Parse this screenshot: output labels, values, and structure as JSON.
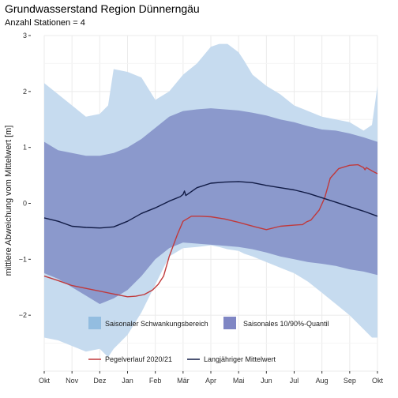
{
  "chart_data": {
    "type": "area",
    "title": "Grundwasserstand Region Dünnerngäu",
    "subtitle": "Anzahl Stationen = 4",
    "xlabel": "",
    "ylabel": "mittlere Abweichung vom Mittelwert [m]",
    "xlim": [
      0,
      12
    ],
    "ylim": [
      -3,
      3
    ],
    "x_tick_labels": [
      "Okt",
      "Nov",
      "Dez",
      "Jan",
      "Feb",
      "Mär",
      "Apr",
      "Mai",
      "Jun",
      "Jul",
      "Aug",
      "Sep",
      "Okt"
    ],
    "y_ticks": [
      3,
      2,
      1,
      0,
      -1,
      -2
    ],
    "y_tick_labels": [
      "3",
      "2",
      "1",
      "0",
      "−1",
      "−2"
    ],
    "grid": true,
    "legend_position": "bottom",
    "bands": [
      {
        "name": "Saisonaler Schwankungsbereich",
        "color": "#c6dbef",
        "x": [
          0,
          0.5,
          1,
          1.5,
          2,
          2.3,
          2.5,
          3,
          3.5,
          4,
          4.5,
          5,
          5.5,
          6,
          6.3,
          6.6,
          7,
          7.2,
          7.5,
          8,
          8.5,
          9,
          9.5,
          10,
          10.5,
          11,
          11.5,
          11.8,
          12
        ],
        "upper": [
          2.15,
          1.95,
          1.75,
          1.55,
          1.6,
          1.75,
          2.4,
          2.35,
          2.25,
          1.85,
          2.0,
          2.3,
          2.5,
          2.8,
          2.85,
          2.85,
          2.7,
          2.55,
          2.3,
          2.1,
          1.95,
          1.75,
          1.65,
          1.55,
          1.5,
          1.45,
          1.3,
          1.4,
          2.1
        ],
        "lower": [
          -2.4,
          -2.45,
          -2.55,
          -2.65,
          -2.6,
          -2.75,
          -2.6,
          -2.35,
          -1.95,
          -1.45,
          -0.95,
          -0.8,
          -0.78,
          -0.75,
          -0.78,
          -0.82,
          -0.85,
          -0.9,
          -0.95,
          -1.05,
          -1.15,
          -1.25,
          -1.4,
          -1.6,
          -1.8,
          -2.0,
          -2.25,
          -2.4,
          -2.4
        ]
      },
      {
        "name": "Saisonales 10/90%-Quantil",
        "color": "#8b99cc",
        "x": [
          0,
          0.5,
          1,
          1.5,
          2,
          2.5,
          3,
          3.5,
          4,
          4.5,
          5,
          5.5,
          6,
          6.5,
          7,
          7.5,
          8,
          8.5,
          9,
          9.5,
          10,
          10.5,
          11,
          11.5,
          12
        ],
        "upper": [
          1.1,
          0.95,
          0.9,
          0.85,
          0.85,
          0.9,
          1.0,
          1.15,
          1.35,
          1.55,
          1.65,
          1.68,
          1.7,
          1.68,
          1.66,
          1.62,
          1.57,
          1.5,
          1.45,
          1.38,
          1.32,
          1.3,
          1.25,
          1.18,
          1.1
        ],
        "lower": [
          -1.25,
          -1.35,
          -1.5,
          -1.65,
          -1.8,
          -1.7,
          -1.55,
          -1.3,
          -1.0,
          -0.8,
          -0.7,
          -0.72,
          -0.74,
          -0.76,
          -0.78,
          -0.82,
          -0.88,
          -0.95,
          -1.0,
          -1.05,
          -1.08,
          -1.12,
          -1.18,
          -1.22,
          -1.28
        ]
      }
    ],
    "series": [
      {
        "name": "Pegelverlauf  2020/21",
        "color": "#c0393b",
        "x": [
          0,
          0.5,
          1,
          1.5,
          2,
          2.5,
          3,
          3.3,
          3.6,
          3.9,
          4.1,
          4.3,
          4.5,
          4.8,
          5,
          5.3,
          5.6,
          6,
          6.5,
          7,
          7.3,
          7.6,
          8,
          8.5,
          9,
          9.3,
          9.45,
          9.6,
          9.9,
          10.1,
          10.3,
          10.6,
          11,
          11.3,
          11.5,
          11.55,
          11.6,
          11.8,
          12
        ],
        "values": [
          -1.3,
          -1.38,
          -1.47,
          -1.52,
          -1.57,
          -1.62,
          -1.67,
          -1.66,
          -1.63,
          -1.55,
          -1.45,
          -1.3,
          -0.95,
          -0.55,
          -0.32,
          -0.23,
          -0.23,
          -0.24,
          -0.28,
          -0.34,
          -0.38,
          -0.42,
          -0.47,
          -0.41,
          -0.39,
          -0.38,
          -0.33,
          -0.3,
          -0.12,
          0.1,
          0.45,
          0.62,
          0.68,
          0.69,
          0.64,
          0.6,
          0.64,
          0.58,
          0.53
        ]
      },
      {
        "name": "Langjähriger Mittelwert",
        "color": "#111b45",
        "x": [
          0,
          0.5,
          1,
          1.5,
          2,
          2.5,
          3,
          3.5,
          4,
          4.5,
          4.9,
          5,
          5.05,
          5.1,
          5.5,
          6,
          6.5,
          7,
          7.5,
          8,
          8.5,
          9,
          9.5,
          10,
          10.5,
          11,
          11.5,
          12
        ],
        "values": [
          -0.26,
          -0.32,
          -0.41,
          -0.43,
          -0.44,
          -0.42,
          -0.32,
          -0.18,
          -0.08,
          0.04,
          0.12,
          0.16,
          0.22,
          0.14,
          0.28,
          0.36,
          0.38,
          0.39,
          0.37,
          0.32,
          0.28,
          0.24,
          0.18,
          0.1,
          0.02,
          -0.06,
          -0.14,
          -0.23
        ]
      }
    ]
  }
}
